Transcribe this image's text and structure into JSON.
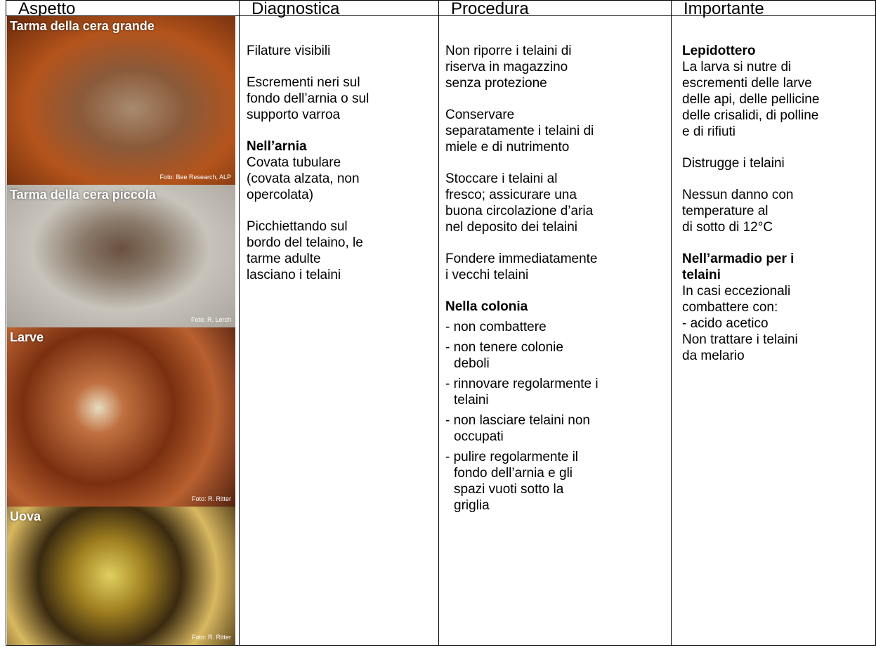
{
  "header": [
    "Aspetto",
    "Diagnostica",
    "Procedura",
    "Importante"
  ],
  "photos": [
    {
      "caption": "Tarma della cera grande",
      "credit": "Foto: Bee Research, ALP"
    },
    {
      "caption": "Tarma della cera piccola",
      "credit": "Foto: R. Lerch"
    },
    {
      "caption": "Larve",
      "credit": "Foto: R. Ritter"
    },
    {
      "caption": "Uova",
      "credit": "Foto: R. Ritter"
    }
  ],
  "columns": [
    [
      {
        "lines": [
          "Filature visibili"
        ]
      },
      {
        "lines": [
          "Escrementi neri sul",
          "fondo dell’arnia o sul",
          "supporto varroa"
        ]
      },
      {
        "bold": [
          "Nell’arnia"
        ],
        "lines": [
          "Covata tubulare",
          "(covata alzata, non",
          "opercolata)"
        ]
      },
      {
        "lines": [
          "Picchiettando sul",
          "bordo del telaino, le",
          "tarme adulte",
          "lasciano i telaini"
        ]
      }
    ],
    [
      {
        "lines": [
          "Non riporre i telaini di",
          "riserva in magazzino",
          "senza protezione"
        ]
      },
      {
        "lines": [
          "Conservare",
          "separatamente i telaini di",
          "miele e di nutrimento"
        ]
      },
      {
        "lines": [
          "Stoccare i telaini al",
          "fresco; assicurare una",
          "buona circolazione d’aria",
          "nel deposito dei telaini"
        ]
      },
      {
        "lines": [
          "Fondere immediatamente",
          "i vecchi telaini"
        ]
      },
      {
        "bold": [
          "Nella colonia"
        ],
        "items": [
          [
            "- non combattere"
          ],
          [
            "- non tenere colonie",
            "deboli"
          ],
          [
            "- rinnovare regolarmente i",
            "telaini"
          ],
          [
            "- non lasciare telaini non",
            "occupati"
          ],
          [
            "- pulire regolarmente il",
            "fondo dell’arnia e gli",
            "spazi vuoti sotto la",
            "griglia"
          ]
        ]
      }
    ],
    [
      {
        "bold": [
          "Lepidottero"
        ],
        "lines": [
          "La larva si nutre di",
          "escrementi delle larve",
          "delle api, delle pellicine",
          "delle crisalidi, di polline",
          "e di rifiuti"
        ]
      },
      {
        "lines": [
          "Distrugge i telaini"
        ]
      },
      {
        "lines": [
          "Nessun danno con",
          "temperature al",
          "di sotto di 12°C"
        ]
      },
      {
        "bold": [
          "Nell’armadio per i",
          "telaini"
        ],
        "lines": [
          "In casi eccezionali",
          "combattere con:",
          "- acido acetico",
          "Non trattare i telaini",
          "da melario"
        ]
      }
    ]
  ]
}
